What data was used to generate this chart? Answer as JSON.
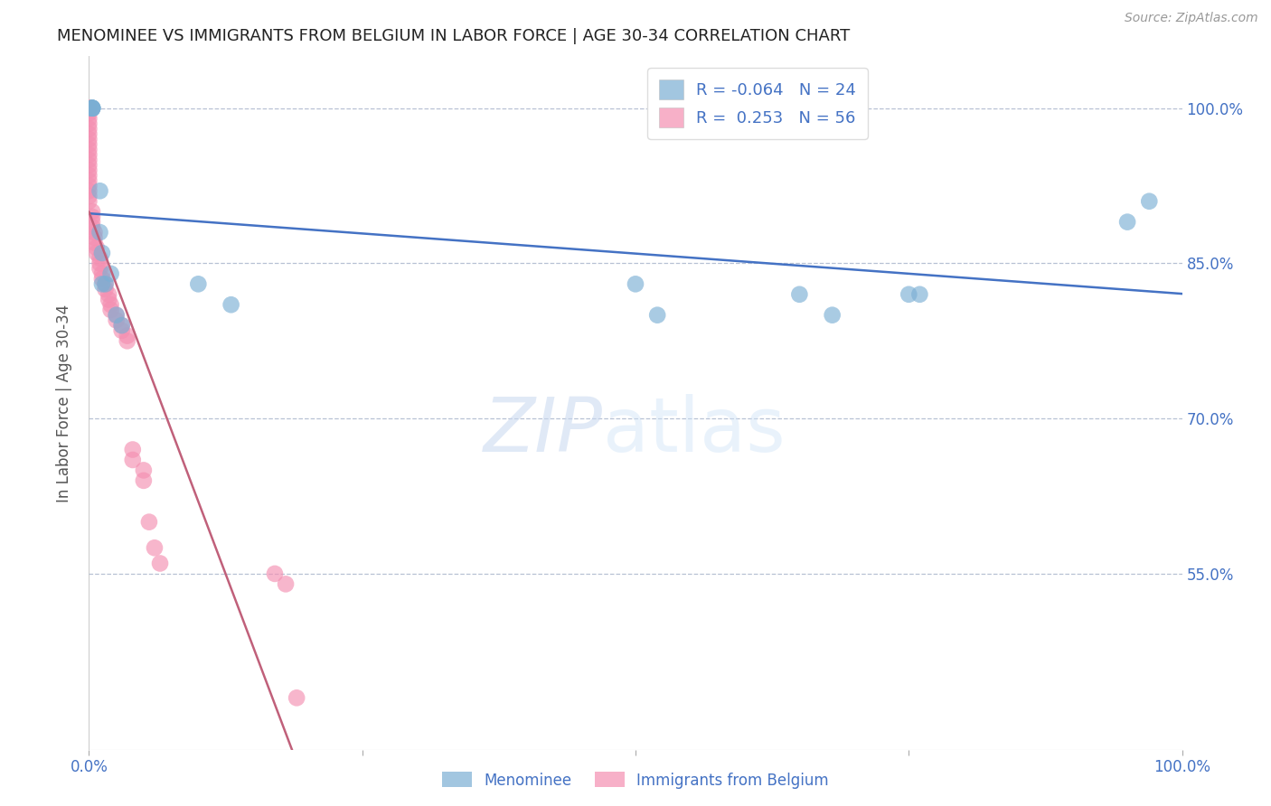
{
  "title": "MENOMINEE VS IMMIGRANTS FROM BELGIUM IN LABOR FORCE | AGE 30-34 CORRELATION CHART",
  "source_text": "Source: ZipAtlas.com",
  "ylabel": "In Labor Force | Age 30-34",
  "xlim": [
    0.0,
    1.0
  ],
  "ylim": [
    0.38,
    1.05
  ],
  "yticks": [
    0.55,
    0.7,
    0.85,
    1.0
  ],
  "ytick_labels": [
    "55.0%",
    "70.0%",
    "85.0%",
    "100.0%"
  ],
  "xtick_labels": [
    "0.0%",
    "100.0%"
  ],
  "xticks": [
    0.0,
    1.0
  ],
  "menominee_color": "#7bafd4",
  "belgium_color": "#f48fb1",
  "menominee_R": -0.064,
  "belgium_R": 0.253,
  "legend_blue_label": "R = -0.064   N = 24",
  "legend_pink_label": "R =  0.253   N = 56",
  "menominee_x": [
    0.003,
    0.003,
    0.003,
    0.003,
    0.003,
    0.003,
    0.01,
    0.01,
    0.012,
    0.012,
    0.015,
    0.02,
    0.025,
    0.03,
    0.1,
    0.13,
    0.5,
    0.52,
    0.65,
    0.68,
    0.75,
    0.76,
    0.95,
    0.97
  ],
  "menominee_y": [
    1.0,
    1.0,
    1.0,
    1.0,
    1.0,
    1.0,
    0.92,
    0.88,
    0.86,
    0.83,
    0.83,
    0.84,
    0.8,
    0.79,
    0.83,
    0.81,
    0.83,
    0.8,
    0.82,
    0.8,
    0.82,
    0.82,
    0.89,
    0.91
  ],
  "belgium_x": [
    0.0,
    0.0,
    0.0,
    0.0,
    0.0,
    0.0,
    0.0,
    0.0,
    0.0,
    0.0,
    0.0,
    0.0,
    0.0,
    0.0,
    0.0,
    0.0,
    0.0,
    0.0,
    0.0,
    0.0,
    0.003,
    0.003,
    0.003,
    0.003,
    0.005,
    0.005,
    0.005,
    0.007,
    0.007,
    0.01,
    0.01,
    0.01,
    0.012,
    0.012,
    0.015,
    0.015,
    0.018,
    0.018,
    0.02,
    0.02,
    0.025,
    0.025,
    0.03,
    0.03,
    0.035,
    0.035,
    0.04,
    0.04,
    0.05,
    0.05,
    0.055,
    0.06,
    0.065,
    0.17,
    0.18,
    0.19
  ],
  "belgium_y": [
    1.0,
    1.0,
    0.995,
    0.99,
    0.985,
    0.98,
    0.975,
    0.97,
    0.965,
    0.96,
    0.955,
    0.95,
    0.945,
    0.94,
    0.935,
    0.93,
    0.925,
    0.92,
    0.915,
    0.91,
    0.9,
    0.895,
    0.89,
    0.885,
    0.88,
    0.875,
    0.87,
    0.865,
    0.86,
    0.855,
    0.85,
    0.845,
    0.84,
    0.835,
    0.83,
    0.825,
    0.82,
    0.815,
    0.81,
    0.805,
    0.8,
    0.795,
    0.79,
    0.785,
    0.78,
    0.775,
    0.67,
    0.66,
    0.65,
    0.64,
    0.6,
    0.575,
    0.56,
    0.55,
    0.54,
    0.43
  ],
  "watermark_zip": "ZIP",
  "watermark_atlas": "atlas",
  "title_color": "#222222",
  "axis_label_color": "#555555",
  "tick_color": "#4472c4",
  "grid_color": "#b0bbd0",
  "trend_blue_color": "#4472c4",
  "trend_pink_color": "#c0607a"
}
